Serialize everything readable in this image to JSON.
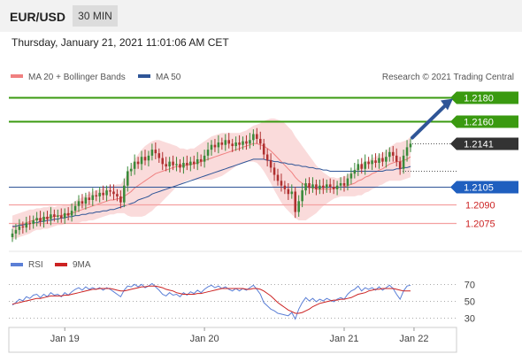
{
  "header": {
    "pair": "EUR/USD",
    "timeframe": "30 MIN",
    "datetime": "Thursday, January 21, 2021 11:01:06 AM CET"
  },
  "chart_data": {
    "type": "candlestick",
    "legend": [
      {
        "label": "MA 20 + Bollinger Bands",
        "color": "#f08080"
      },
      {
        "label": "MA 50",
        "color": "#2f5597"
      }
    ],
    "copyright": "Research © 2021 Trading Central",
    "ylim": [
      1.206,
      1.219
    ],
    "x_ticks": [
      {
        "label": "Jan 19",
        "index": 15
      },
      {
        "label": "Jan 20",
        "index": 55
      },
      {
        "label": "Jan 21",
        "index": 95
      },
      {
        "label": "Jan 22",
        "index": 115
      }
    ],
    "levels": [
      {
        "value": 1.218,
        "label": "1.2180",
        "type": "resistance",
        "color": "#3a9a10"
      },
      {
        "value": 1.216,
        "label": "1.2160",
        "type": "resistance",
        "color": "#3a9a10"
      },
      {
        "value": 1.2141,
        "label": "1.2141",
        "type": "last",
        "color": "#333333"
      },
      {
        "value": 1.2105,
        "label": "1.2105",
        "type": "pivot",
        "color": "#1f5fbf"
      },
      {
        "value": 1.209,
        "label": "1.2090",
        "type": "support",
        "color": "#cc2222"
      },
      {
        "value": 1.2075,
        "label": "1.2075",
        "type": "support",
        "color": "#cc2222"
      }
    ],
    "pivot_line_color": "#2f5597",
    "bollinger_color": "#f5b8b8",
    "ma20_color": "#f08080",
    "ma50_color": "#2f5597",
    "up_color": "#3a8a3a",
    "down_color": "#b03030",
    "arrow": {
      "from": 1.2146,
      "to": 1.218,
      "color": "#2f5597"
    },
    "candle_closes": [
      1.2066,
      1.2069,
      1.2072,
      1.2071,
      1.2075,
      1.2074,
      1.2077,
      1.2079,
      1.2076,
      1.208,
      1.2078,
      1.2082,
      1.208,
      1.2081,
      1.2079,
      1.2083,
      1.2081,
      1.2085,
      1.2089,
      1.2093,
      1.2091,
      1.2096,
      1.2094,
      1.2098,
      1.2097,
      1.21,
      1.2098,
      1.2102,
      1.2101,
      1.2099,
      1.2097,
      1.2092,
      1.2106,
      1.2118,
      1.212,
      1.2126,
      1.2124,
      1.213,
      1.2127,
      1.2131,
      1.2136,
      1.2133,
      1.2129,
      1.2124,
      1.2122,
      1.2126,
      1.2123,
      1.2124,
      1.2121,
      1.2125,
      1.2123,
      1.2126,
      1.2124,
      1.2128,
      1.2126,
      1.2131,
      1.2136,
      1.214,
      1.2138,
      1.2142,
      1.214,
      1.2144,
      1.2141,
      1.2139,
      1.2142,
      1.214,
      1.2143,
      1.2141,
      1.2144,
      1.2149,
      1.2145,
      1.2141,
      1.2132,
      1.2127,
      1.2121,
      1.2115,
      1.211,
      1.2106,
      1.2103,
      1.2099,
      1.2101,
      1.2084,
      1.2093,
      1.2102,
      1.2108,
      1.2104,
      1.2107,
      1.2103,
      1.2106,
      1.2104,
      1.2107,
      1.2105,
      1.2103,
      1.2106,
      1.2108,
      1.2106,
      1.2112,
      1.2116,
      1.2119,
      1.2124,
      1.212,
      1.2126,
      1.2124,
      1.2127,
      1.2125,
      1.2129,
      1.2126,
      1.213,
      1.2134,
      1.2131,
      1.2126,
      1.212,
      1.2131,
      1.2138,
      1.2141
    ],
    "ma20": [
      1.2071,
      1.2072,
      1.2073,
      1.2074,
      1.2075,
      1.2076,
      1.2077,
      1.2078,
      1.2078,
      1.2079,
      1.2079,
      1.208,
      1.208,
      1.2081,
      1.2081,
      1.2082,
      1.2082,
      1.2083,
      1.2084,
      1.2085,
      1.2086,
      1.2087,
      1.2088,
      1.2089,
      1.209,
      1.2091,
      1.2092,
      1.2093,
      1.2094,
      1.2094,
      1.2095,
      1.2095,
      1.2097,
      1.2099,
      1.2101,
      1.2104,
      1.2106,
      1.2108,
      1.211,
      1.2112,
      1.2114,
      1.2116,
      1.2117,
      1.2118,
      1.2119,
      1.212,
      1.2121,
      1.2122,
      1.2122,
      1.2123,
      1.2123,
      1.2124,
      1.2124,
      1.2125,
      1.2126,
      1.2127,
      1.2128,
      1.2129,
      1.213,
      1.2131,
      1.2132,
      1.2133,
      1.2134,
      1.2135,
      1.2136,
      1.2137,
      1.2138,
      1.2139,
      1.214,
      1.2141,
      1.2141,
      1.214,
      1.2139,
      1.2137,
      1.2135,
      1.2132,
      1.2129,
      1.2126,
      1.2123,
      1.212,
      1.2117,
      1.2113,
      1.211,
      1.2108,
      1.2106,
      1.2105,
      1.2104,
      1.2103,
      1.2103,
      1.2103,
      1.2103,
      1.2103,
      1.2104,
      1.2104,
      1.2105,
      1.2105,
      1.2106,
      1.2107,
      1.2108,
      1.211,
      1.2111,
      1.2113,
      1.2114,
      1.2116,
      1.2117,
      1.2119,
      1.212,
      1.2122,
      1.2124,
      1.2125,
      1.2126,
      1.2126,
      1.2127,
      1.2128,
      1.213
    ],
    "ma50": [
      1.2072,
      1.2072,
      1.2073,
      1.2073,
      1.2074,
      1.2074,
      1.2075,
      1.2075,
      1.2076,
      1.2076,
      1.2077,
      1.2077,
      1.2078,
      1.2078,
      1.2079,
      1.2079,
      1.208,
      1.208,
      1.2081,
      1.2081,
      1.2082,
      1.2082,
      1.2083,
      1.2083,
      1.2084,
      1.2084,
      1.2085,
      1.2085,
      1.2086,
      1.2086,
      1.2087,
      1.2088,
      1.2089,
      1.209,
      1.2091,
      1.2092,
      1.2094,
      1.2095,
      1.2096,
      1.2097,
      1.2099,
      1.21,
      1.2101,
      1.2102,
      1.2103,
      1.2104,
      1.2105,
      1.2106,
      1.2107,
      1.2108,
      1.2109,
      1.211,
      1.2111,
      1.2112,
      1.2113,
      1.2114,
      1.2115,
      1.2116,
      1.2117,
      1.2118,
      1.2119,
      1.212,
      1.2121,
      1.2122,
      1.2123,
      1.2124,
      1.2125,
      1.2126,
      1.2127,
      1.2128,
      1.2128,
      1.2128,
      1.2128,
      1.2127,
      1.2127,
      1.2126,
      1.2126,
      1.2125,
      1.2125,
      1.2124,
      1.2124,
      1.2123,
      1.2123,
      1.2122,
      1.2122,
      1.2121,
      1.2121,
      1.212,
      1.212,
      1.2119,
      1.2119,
      1.2118,
      1.2118,
      1.2118,
      1.2118,
      1.2118,
      1.2118,
      1.2118,
      1.2118,
      1.2118,
      1.2118,
      1.2118,
      1.2118,
      1.2118,
      1.2118,
      1.2118,
      1.2118,
      1.2119,
      1.2119,
      1.2119,
      1.212,
      1.212,
      1.2121,
      1.2121,
      1.2122
    ],
    "bb_width": [
      0.001,
      0.001,
      0.001,
      0.001,
      0.001,
      0.001,
      0.0009,
      0.0009,
      0.0009,
      0.0009,
      0.0009,
      0.0009,
      0.0008,
      0.0008,
      0.0008,
      0.0008,
      0.0008,
      0.0008,
      0.0009,
      0.001,
      0.001,
      0.0011,
      0.0011,
      0.0012,
      0.0012,
      0.0012,
      0.0012,
      0.0012,
      0.0012,
      0.0012,
      0.0012,
      0.0012,
      0.0014,
      0.0018,
      0.0021,
      0.0024,
      0.0026,
      0.0028,
      0.0029,
      0.0029,
      0.0029,
      0.0028,
      0.0027,
      0.0025,
      0.0023,
      0.0021,
      0.0019,
      0.0017,
      0.0015,
      0.0014,
      0.0013,
      0.0013,
      0.0013,
      0.0014,
      0.0015,
      0.0016,
      0.0017,
      0.0018,
      0.0018,
      0.0018,
      0.0018,
      0.0017,
      0.0016,
      0.0015,
      0.0014,
      0.0013,
      0.0013,
      0.0013,
      0.0014,
      0.0015,
      0.0016,
      0.0018,
      0.0021,
      0.0024,
      0.0027,
      0.003,
      0.0032,
      0.0034,
      0.0035,
      0.0035,
      0.0035,
      0.0034,
      0.0033,
      0.0031,
      0.0029,
      0.0026,
      0.0023,
      0.002,
      0.0017,
      0.0014,
      0.0012,
      0.001,
      0.0009,
      0.0008,
      0.0008,
      0.0008,
      0.0009,
      0.001,
      0.0011,
      0.0012,
      0.0013,
      0.0013,
      0.0013,
      0.0013,
      0.0013,
      0.0013,
      0.0013,
      0.0013,
      0.0014,
      0.0015,
      0.0016,
      0.0016,
      0.0016,
      0.0016,
      0.0017
    ],
    "rsi": {
      "legend": [
        {
          "label": "RSI",
          "color": "#5b7fd6"
        },
        {
          "label": "9MA",
          "color": "#cc2222"
        }
      ],
      "ylim": [
        20,
        80
      ],
      "ticks": [
        70,
        50,
        30
      ],
      "values": [
        45,
        48,
        52,
        50,
        55,
        53,
        57,
        58,
        54,
        58,
        55,
        60,
        57,
        58,
        55,
        60,
        57,
        61,
        64,
        66,
        63,
        67,
        64,
        66,
        64,
        66,
        63,
        66,
        64,
        61,
        58,
        55,
        63,
        68,
        67,
        70,
        67,
        70,
        66,
        68,
        71,
        67,
        63,
        58,
        56,
        60,
        57,
        58,
        55,
        60,
        57,
        61,
        59,
        63,
        60,
        64,
        67,
        69,
        66,
        68,
        65,
        67,
        64,
        62,
        65,
        62,
        65,
        63,
        66,
        69,
        64,
        58,
        48,
        44,
        40,
        38,
        35,
        34,
        33,
        32,
        36,
        28,
        40,
        48,
        54,
        50,
        53,
        49,
        52,
        50,
        53,
        51,
        49,
        52,
        54,
        52,
        58,
        62,
        64,
        68,
        62,
        66,
        64,
        66,
        63,
        67,
        63,
        66,
        69,
        65,
        58,
        52,
        62,
        68,
        69
      ],
      "ma9": [
        46,
        47,
        48,
        49,
        50,
        51,
        52,
        53,
        53,
        54,
        55,
        56,
        56,
        56,
        56,
        57,
        57,
        58,
        59,
        60,
        61,
        62,
        63,
        64,
        64,
        65,
        65,
        65,
        65,
        64,
        63,
        62,
        62,
        63,
        64,
        65,
        66,
        67,
        67,
        68,
        68,
        68,
        67,
        66,
        64,
        63,
        62,
        60,
        59,
        58,
        58,
        58,
        58,
        59,
        59,
        60,
        61,
        62,
        63,
        64,
        65,
        65,
        65,
        65,
        65,
        65,
        65,
        64,
        64,
        65,
        65,
        64,
        62,
        59,
        56,
        52,
        48,
        45,
        42,
        39,
        37,
        35,
        35,
        36,
        38,
        40,
        43,
        45,
        47,
        48,
        49,
        50,
        51,
        51,
        52,
        52,
        53,
        54,
        56,
        58,
        59,
        60,
        62,
        63,
        64,
        64,
        65,
        65,
        65,
        65,
        64,
        63,
        62,
        62,
        62
      ]
    }
  }
}
